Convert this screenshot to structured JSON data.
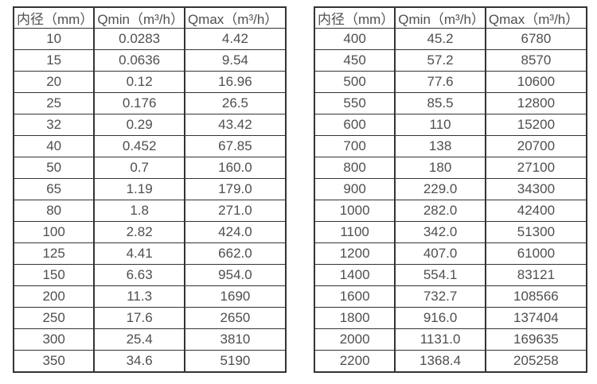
{
  "colors": {
    "background": "#ffffff",
    "border": "#343434",
    "text": "#4f4f4f"
  },
  "tables": [
    {
      "name": "flow-rate-table-small-diameters",
      "headers": [
        "内径（mm）",
        "Qmin（m³/h）",
        "Qmax（m³/h）"
      ],
      "rows": [
        [
          "10",
          "0.0283",
          "4.42"
        ],
        [
          "15",
          "0.0636",
          "9.54"
        ],
        [
          "20",
          "0.12",
          "16.96"
        ],
        [
          "25",
          "0.176",
          "26.5"
        ],
        [
          "32",
          "0.29",
          "43.42"
        ],
        [
          "40",
          "0.452",
          "67.85"
        ],
        [
          "50",
          "0.7",
          "160.0"
        ],
        [
          "65",
          "1.19",
          "179.0"
        ],
        [
          "80",
          "1.8",
          "271.0"
        ],
        [
          "100",
          "2.82",
          "424.0"
        ],
        [
          "125",
          "4.41",
          "662.0"
        ],
        [
          "150",
          "6.63",
          "954.0"
        ],
        [
          "200",
          "11.3",
          "1690"
        ],
        [
          "250",
          "17.6",
          "2650"
        ],
        [
          "300",
          "25.4",
          "3810"
        ],
        [
          "350",
          "34.6",
          "5190"
        ]
      ]
    },
    {
      "name": "flow-rate-table-large-diameters",
      "headers": [
        "内径（mm）",
        "Qmin（m³/h）",
        "Qmax（m³/h）"
      ],
      "rows": [
        [
          "400",
          "45.2",
          "6780"
        ],
        [
          "450",
          "57.2",
          "8570"
        ],
        [
          "500",
          "77.6",
          "10600"
        ],
        [
          "550",
          "85.5",
          "12800"
        ],
        [
          "600",
          "110",
          "15200"
        ],
        [
          "700",
          "138",
          "20700"
        ],
        [
          "800",
          "180",
          "27100"
        ],
        [
          "900",
          "229.0",
          "34300"
        ],
        [
          "1000",
          "282.0",
          "42400"
        ],
        [
          "1100",
          "342.0",
          "51300"
        ],
        [
          "1200",
          "407.0",
          "61000"
        ],
        [
          "1400",
          "554.1",
          "83121"
        ],
        [
          "1600",
          "732.7",
          "108566"
        ],
        [
          "1800",
          "916.0",
          "137404"
        ],
        [
          "2000",
          "1131.0",
          "169635"
        ],
        [
          "2200",
          "1368.4",
          "205258"
        ]
      ]
    }
  ]
}
